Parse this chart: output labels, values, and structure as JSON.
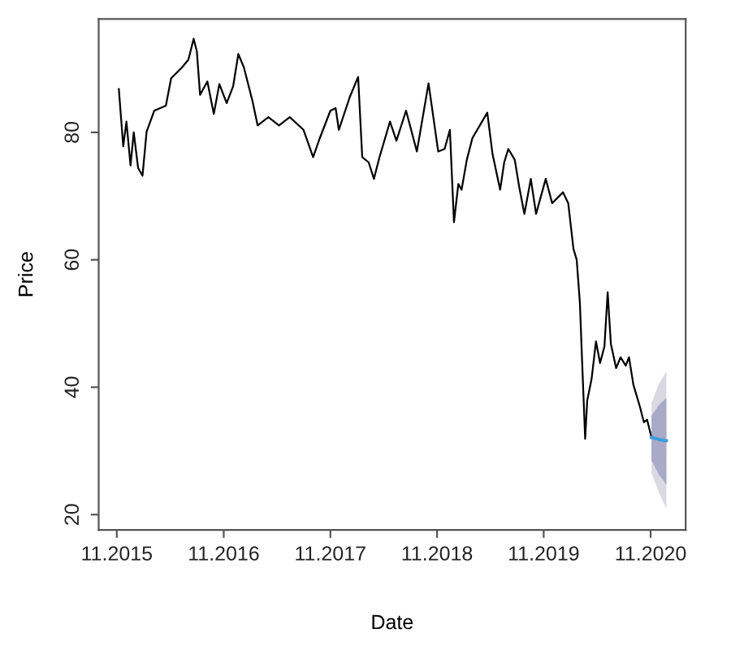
{
  "chart_data": {
    "type": "line",
    "xlabel": "Date",
    "ylabel": "Price",
    "xlim": [
      "2015-08-31",
      "2021-03-01"
    ],
    "ylim": [
      17.6,
      97.8
    ],
    "xticks": [
      {
        "value": "2015-11-01",
        "label": "11.2015"
      },
      {
        "value": "2016-11-01",
        "label": "11.2016"
      },
      {
        "value": "2017-11-01",
        "label": "11.2017"
      },
      {
        "value": "2018-11-01",
        "label": "11.2018"
      },
      {
        "value": "2019-11-01",
        "label": "11.2019"
      },
      {
        "value": "2020-11-01",
        "label": "11.2020"
      }
    ],
    "yticks": [
      20,
      40,
      60,
      80
    ],
    "grid": false,
    "line_style": "solid",
    "series": [
      {
        "color": "#000000",
        "x": [
          "2015-11-08",
          "2015-11-23",
          "2015-12-04",
          "2015-12-18",
          "2015-12-29",
          "2016-01-13",
          "2016-01-28",
          "2016-02-11",
          "2016-03-08",
          "2016-04-17",
          "2016-05-05",
          "2016-06-11",
          "2016-07-03",
          "2016-07-21",
          "2016-08-01",
          "2016-08-12",
          "2016-09-06",
          "2016-09-28",
          "2016-10-17",
          "2016-11-11",
          "2016-12-03",
          "2016-12-21",
          "2017-01-09",
          "2017-02-07",
          "2017-02-25",
          "2017-04-03",
          "2017-05-09",
          "2017-06-15",
          "2017-08-01",
          "2017-09-03",
          "2017-09-25",
          "2017-11-01",
          "2017-11-19",
          "2017-11-30",
          "2018-01-06",
          "2018-02-04",
          "2018-02-18",
          "2018-03-12",
          "2018-03-30",
          "2018-04-18",
          "2018-05-24",
          "2018-06-15",
          "2018-07-18",
          "2018-08-24",
          "2018-10-03",
          "2018-11-05",
          "2018-11-27",
          "2018-12-15",
          "2018-12-29",
          "2019-01-13",
          "2019-01-24",
          "2019-02-11",
          "2019-03-02",
          "2019-04-04",
          "2019-04-22",
          "2019-05-10",
          "2019-06-05",
          "2019-06-19",
          "2019-07-03",
          "2019-07-25",
          "2019-08-09",
          "2019-08-27",
          "2019-09-18",
          "2019-10-06",
          "2019-11-08",
          "2019-11-30",
          "2020-01-06",
          "2020-01-24",
          "2020-02-11",
          "2020-02-22",
          "2020-03-04",
          "2020-03-11",
          "2020-03-22",
          "2020-03-29",
          "2020-04-13",
          "2020-04-28",
          "2020-05-12",
          "2020-05-27",
          "2020-06-07",
          "2020-06-18",
          "2020-07-06",
          "2020-07-21",
          "2020-08-08",
          "2020-08-19",
          "2020-09-03",
          "2020-09-25",
          "2020-10-09",
          "2020-10-20",
          "2020-11-04"
        ],
        "values": [
          86.8,
          77.8,
          81.7,
          74.8,
          80.0,
          74.4,
          73.2,
          80.1,
          83.4,
          84.2,
          88.5,
          90.2,
          91.4,
          94.7,
          92.7,
          85.9,
          88.0,
          82.9,
          87.6,
          84.6,
          87.2,
          92.3,
          90.2,
          85.0,
          81.1,
          82.4,
          81.1,
          82.4,
          80.4,
          76.1,
          79.0,
          83.4,
          83.8,
          80.4,
          85.5,
          88.7,
          76.1,
          75.3,
          72.7,
          76.1,
          81.7,
          78.7,
          83.4,
          77.0,
          87.7,
          77.0,
          77.4,
          80.4,
          65.9,
          71.9,
          71.0,
          75.7,
          79.1,
          81.7,
          83.1,
          76.6,
          71.0,
          75.3,
          77.4,
          75.7,
          71.5,
          67.2,
          72.7,
          67.2,
          72.7,
          68.9,
          70.6,
          68.9,
          61.7,
          60.0,
          53.2,
          44.7,
          31.9,
          37.9,
          41.3,
          47.2,
          43.8,
          46.4,
          54.9,
          46.8,
          43.0,
          44.7,
          43.4,
          44.7,
          40.4,
          37.0,
          34.5,
          34.9,
          32.1
        ]
      },
      {
        "color": "#d9d9e4",
        "x": [
          "2020-11-04",
          "2020-11-29",
          "2020-12-25"
        ],
        "values": [
          null,
          null,
          null
        ],
        "lower": [
          26.5,
          23.5,
          20.9
        ],
        "upper": [
          37.5,
          40.5,
          42.5
        ]
      },
      {
        "color": "#a9a9c8",
        "x": [
          "2020-11-04",
          "2020-11-29",
          "2020-12-25"
        ],
        "values": [
          null,
          null,
          null
        ],
        "lower": [
          28.5,
          26.3,
          24.7
        ],
        "upper": [
          35.5,
          37.2,
          38.3
        ]
      },
      {
        "color": "#3a9ee0",
        "x": [
          "2020-11-04",
          "2020-11-29",
          "2020-12-25"
        ],
        "values": [
          32.1,
          31.8,
          31.6
        ]
      }
    ]
  }
}
